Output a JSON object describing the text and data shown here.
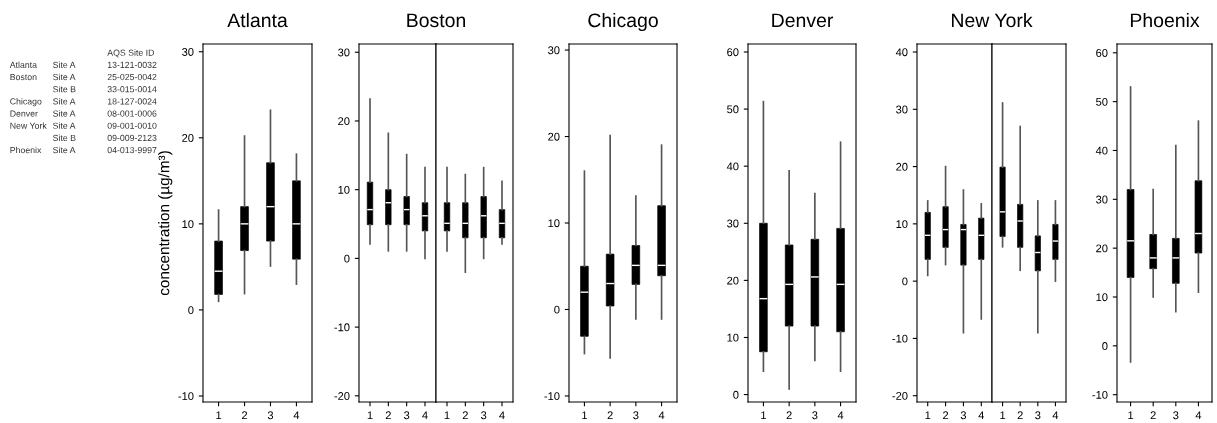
{
  "chart_data": [
    {
      "type": "other",
      "categories": [
        "Atlanta",
        "Boston",
        null,
        "Chicago",
        "Denver",
        "New York",
        null,
        "Phoenix"
      ],
      "annotations": [
        "AQS Site ID",
        "Site A",
        "13-121-0032",
        "Site A",
        "25-025-0042",
        "Site B",
        "33-015-0014",
        "Site A",
        "18-127-0024",
        "Site A",
        "08-001-0006",
        "Site A",
        "09-001-0010",
        "Site B",
        "09-009-2123",
        "Site A",
        "04-013-9997"
      ]
    },
    {
      "type": "box",
      "title": "Atlanta",
      "ylabel": "concentration (µg/m³)",
      "categories": [
        "1",
        "2",
        "3",
        "4"
      ],
      "ylim": [
        -10.7,
        30.9
      ],
      "yticks": [
        -10,
        0,
        10,
        20,
        30
      ],
      "series": [
        {
          "color": "#000000",
          "boxes": [
            {
              "low": 1,
              "q1": 1.8,
              "median": 4.5,
              "q3": 8,
              "high": 11.6
            },
            {
              "low": 1.9,
              "q1": 6.9,
              "median": 10,
              "q3": 12,
              "high": 20.2
            },
            {
              "low": 5.1,
              "q1": 8,
              "median": 12,
              "q3": 17.1,
              "high": 23.2
            },
            {
              "low": 3,
              "q1": 5.9,
              "median": 10,
              "q3": 15,
              "high": 18.1
            }
          ]
        }
      ]
    },
    {
      "type": "box",
      "title": "Boston",
      "categories": [
        "1",
        "2",
        "3",
        "4"
      ],
      "ylim": [
        -20.9,
        31.2
      ],
      "yticks": [
        -20,
        -10,
        0,
        10,
        20,
        30
      ],
      "series": [
        {
          "color": "#000000",
          "boxes": [
            {
              "low": 2.1,
              "q1": 4.9,
              "median": 7.1,
              "q3": 11.1,
              "high": 23.2
            },
            {
              "low": 1.1,
              "q1": 4.9,
              "median": 8.1,
              "q3": 10,
              "high": 18.2
            },
            {
              "low": 1.1,
              "q1": 4.9,
              "median": 7.1,
              "q3": 9,
              "high": 15.1
            },
            {
              "low": 0,
              "q1": 4,
              "median": 6.2,
              "q3": 8.1,
              "high": 13.2
            }
          ]
        }
      ]
    },
    {
      "type": "box",
      "categories": [
        "1",
        "2",
        "3",
        "4"
      ],
      "ylim": [
        -20.9,
        31.2
      ],
      "yticks": [
        -20,
        -10,
        0,
        10,
        20,
        30
      ],
      "tick_labels": "x",
      "series": [
        {
          "color": "#000000",
          "boxes": [
            {
              "low": 1.1,
              "q1": 4,
              "median": 5.1,
              "q3": 8.1,
              "high": 13.2
            },
            {
              "low": -2,
              "q1": 3,
              "median": 5.1,
              "q3": 8.1,
              "high": 12.2
            },
            {
              "low": 0,
              "q1": 3,
              "median": 6.2,
              "q3": 9,
              "high": 13.2
            },
            {
              "low": 2.1,
              "q1": 3,
              "median": 5.1,
              "q3": 7.1,
              "high": 11.2
            }
          ]
        }
      ]
    },
    {
      "type": "box",
      "title": "Chicago",
      "categories": [
        "1",
        "2",
        "3",
        "4"
      ],
      "ylim": [
        -10.7,
        30.7
      ],
      "yticks": [
        -10,
        0,
        10,
        20,
        30
      ],
      "series": [
        {
          "color": "#000000",
          "boxes": [
            {
              "low": -5.1,
              "q1": -3.1,
              "median": 2,
              "q3": 5,
              "high": 16
            },
            {
              "low": -5.6,
              "q1": 0.4,
              "median": 3,
              "q3": 6.4,
              "high": 20.1
            },
            {
              "low": -1.1,
              "q1": 2.9,
              "median": 5.1,
              "q3": 7.4,
              "high": 13.1
            },
            {
              "low": -1.1,
              "q1": 3.9,
              "median": 5.1,
              "q3": 12,
              "high": 19
            }
          ]
        }
      ]
    },
    {
      "type": "box",
      "title": "Denver",
      "categories": [
        "1",
        "2",
        "3",
        "4"
      ],
      "ylim": [
        -1.3,
        61.4
      ],
      "yticks": [
        0,
        10,
        20,
        30,
        40,
        50,
        60
      ],
      "series": [
        {
          "color": "#000000",
          "boxes": [
            {
              "low": 4.1,
              "q1": 7.5,
              "median": 16.8,
              "q3": 30,
              "high": 51.3
            },
            {
              "low": 1,
              "q1": 12,
              "median": 19.3,
              "q3": 26.2,
              "high": 39.2
            },
            {
              "low": 6,
              "q1": 12,
              "median": 20.6,
              "q3": 27.2,
              "high": 35.2
            },
            {
              "low": 4.1,
              "q1": 11,
              "median": 19.3,
              "q3": 29.1,
              "high": 44.2
            }
          ]
        }
      ]
    },
    {
      "type": "box",
      "title": "New York",
      "categories": [
        "1",
        "2",
        "3",
        "4"
      ],
      "ylim": [
        -21.1,
        41.4
      ],
      "yticks": [
        -20,
        -10,
        0,
        10,
        20,
        30,
        40
      ],
      "series": [
        {
          "color": "#000000",
          "boxes": [
            {
              "low": 1,
              "q1": 3.8,
              "median": 8,
              "q3": 12,
              "high": 14
            },
            {
              "low": 2.9,
              "q1": 5.9,
              "median": 9,
              "q3": 13,
              "high": 20
            },
            {
              "low": -9,
              "q1": 2.8,
              "median": 9,
              "q3": 9.9,
              "high": 15.9
            },
            {
              "low": -6.6,
              "q1": 3.8,
              "median": 8,
              "q3": 11,
              "high": 13.5
            }
          ]
        }
      ]
    },
    {
      "type": "box",
      "categories": [
        "1",
        "2",
        "3",
        "4"
      ],
      "ylim": [
        -21.1,
        41.4
      ],
      "yticks": [
        -20,
        -10,
        0,
        10,
        20,
        30,
        40
      ],
      "tick_labels": "x",
      "series": [
        {
          "color": "#000000",
          "boxes": [
            {
              "low": 6,
              "q1": 7.8,
              "median": 12.1,
              "q3": 19.9,
              "high": 31.1
            },
            {
              "low": 1.9,
              "q1": 5.9,
              "median": 10.5,
              "q3": 13.4,
              "high": 27
            },
            {
              "low": -9,
              "q1": 1.8,
              "median": 5,
              "q3": 7.9,
              "high": 14
            },
            {
              "low": 0,
              "q1": 3.8,
              "median": 7,
              "q3": 9.9,
              "high": 14
            }
          ]
        }
      ]
    },
    {
      "type": "box",
      "title": "Phoenix",
      "categories": [
        "1",
        "2",
        "3",
        "4"
      ],
      "ylim": [
        -11.5,
        61.8
      ],
      "yticks": [
        -10,
        0,
        10,
        20,
        30,
        40,
        50,
        60
      ],
      "series": [
        {
          "color": "#000000",
          "boxes": [
            {
              "low": -3.3,
              "q1": 14,
              "median": 21.5,
              "q3": 32,
              "high": 53
            },
            {
              "low": 10,
              "q1": 15.8,
              "median": 18,
              "q3": 22.8,
              "high": 32
            },
            {
              "low": 7,
              "q1": 12.8,
              "median": 18,
              "q3": 22,
              "high": 41
            },
            {
              "low": 11,
              "q1": 19,
              "median": 23,
              "q3": 33.8,
              "high": 46
            }
          ]
        }
      ]
    }
  ]
}
